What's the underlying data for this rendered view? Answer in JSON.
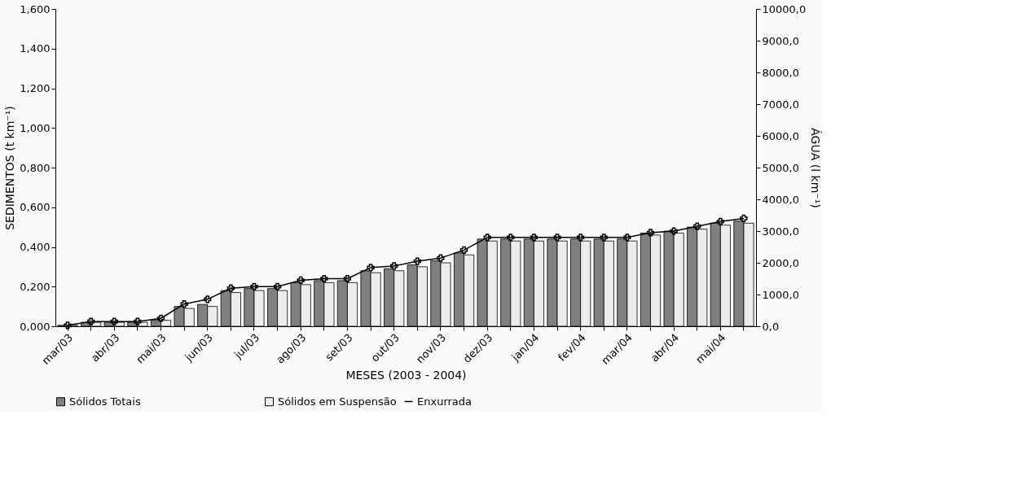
{
  "chart_data": {
    "type": "bar",
    "xlabel": "MESES (2003 - 2004)",
    "ylabel": "SEDIMENTOS (t km⁻¹)",
    "y2label": "ÁGUA (l km⁻¹)",
    "categories": [
      "mar/03",
      null,
      "abr/03",
      null,
      "mai/03",
      null,
      "jun/03",
      null,
      "jul/03",
      null,
      "ago/03",
      null,
      "set/03",
      null,
      "out/03",
      null,
      "nov/03",
      null,
      "dez/03",
      null,
      "jan/04",
      null,
      "fev/04",
      null,
      "mar/04",
      null,
      "abr/04",
      null,
      "mai/04",
      null
    ],
    "series": [
      {
        "name": "Sólidos Totais",
        "color": "#808080",
        "values": [
          0.005,
          0.02,
          0.02,
          0.02,
          0.03,
          0.1,
          0.11,
          0.18,
          0.19,
          0.19,
          0.22,
          0.23,
          0.23,
          0.28,
          0.29,
          0.31,
          0.33,
          0.37,
          0.44,
          0.44,
          0.44,
          0.44,
          0.44,
          0.44,
          0.44,
          0.47,
          0.48,
          0.5,
          0.52,
          0.53
        ]
      },
      {
        "name": "Sólidos em Suspensão",
        "color": "#ececec",
        "values": [
          0.005,
          0.02,
          0.02,
          0.02,
          0.03,
          0.09,
          0.1,
          0.17,
          0.18,
          0.18,
          0.21,
          0.22,
          0.22,
          0.27,
          0.28,
          0.3,
          0.32,
          0.36,
          0.43,
          0.43,
          0.43,
          0.43,
          0.43,
          0.43,
          0.43,
          0.46,
          0.47,
          0.49,
          0.51,
          0.52
        ]
      },
      {
        "name": "Enxurrada",
        "type": "line",
        "axis": "y2",
        "color": "#000000",
        "values": [
          30,
          150,
          150,
          150,
          250,
          700,
          850,
          1200,
          1250,
          1250,
          1450,
          1500,
          1500,
          1850,
          1900,
          2050,
          2150,
          2400,
          2800,
          2800,
          2800,
          2800,
          2800,
          2800,
          2800,
          2950,
          3000,
          3150,
          3300,
          3400
        ]
      }
    ],
    "marker": "cross",
    "line_style": "solid",
    "ylim": [
      0,
      1.6
    ],
    "yticks": [
      {
        "value": 0,
        "label": "0,000"
      },
      {
        "value": 0.2,
        "label": "0,200"
      },
      {
        "value": 0.4,
        "label": "0,400"
      },
      {
        "value": 0.6,
        "label": "0,600"
      },
      {
        "value": 0.8,
        "label": "0,800"
      },
      {
        "value": 1.0,
        "label": "1,000"
      },
      {
        "value": 1.2,
        "label": "1,200"
      },
      {
        "value": 1.4,
        "label": "1,400"
      },
      {
        "value": 1.6,
        "label": "1,600"
      }
    ],
    "y2lim": [
      0,
      10000
    ],
    "y2ticks": [
      {
        "value": 0,
        "label": "0,0"
      },
      {
        "value": 1000,
        "label": "1000,0"
      },
      {
        "value": 2000,
        "label": "2000,0"
      },
      {
        "value": 3000,
        "label": "3000,0"
      },
      {
        "value": 4000,
        "label": "4000,0"
      },
      {
        "value": 5000,
        "label": "5000,0"
      },
      {
        "value": 6000,
        "label": "6000,0"
      },
      {
        "value": 7000,
        "label": "7000,0"
      },
      {
        "value": 8000,
        "label": "8000,0"
      },
      {
        "value": 9000,
        "label": "9000,0"
      },
      {
        "value": 10000,
        "label": "10000,0"
      }
    ],
    "grid": false,
    "legend": "bottom"
  }
}
